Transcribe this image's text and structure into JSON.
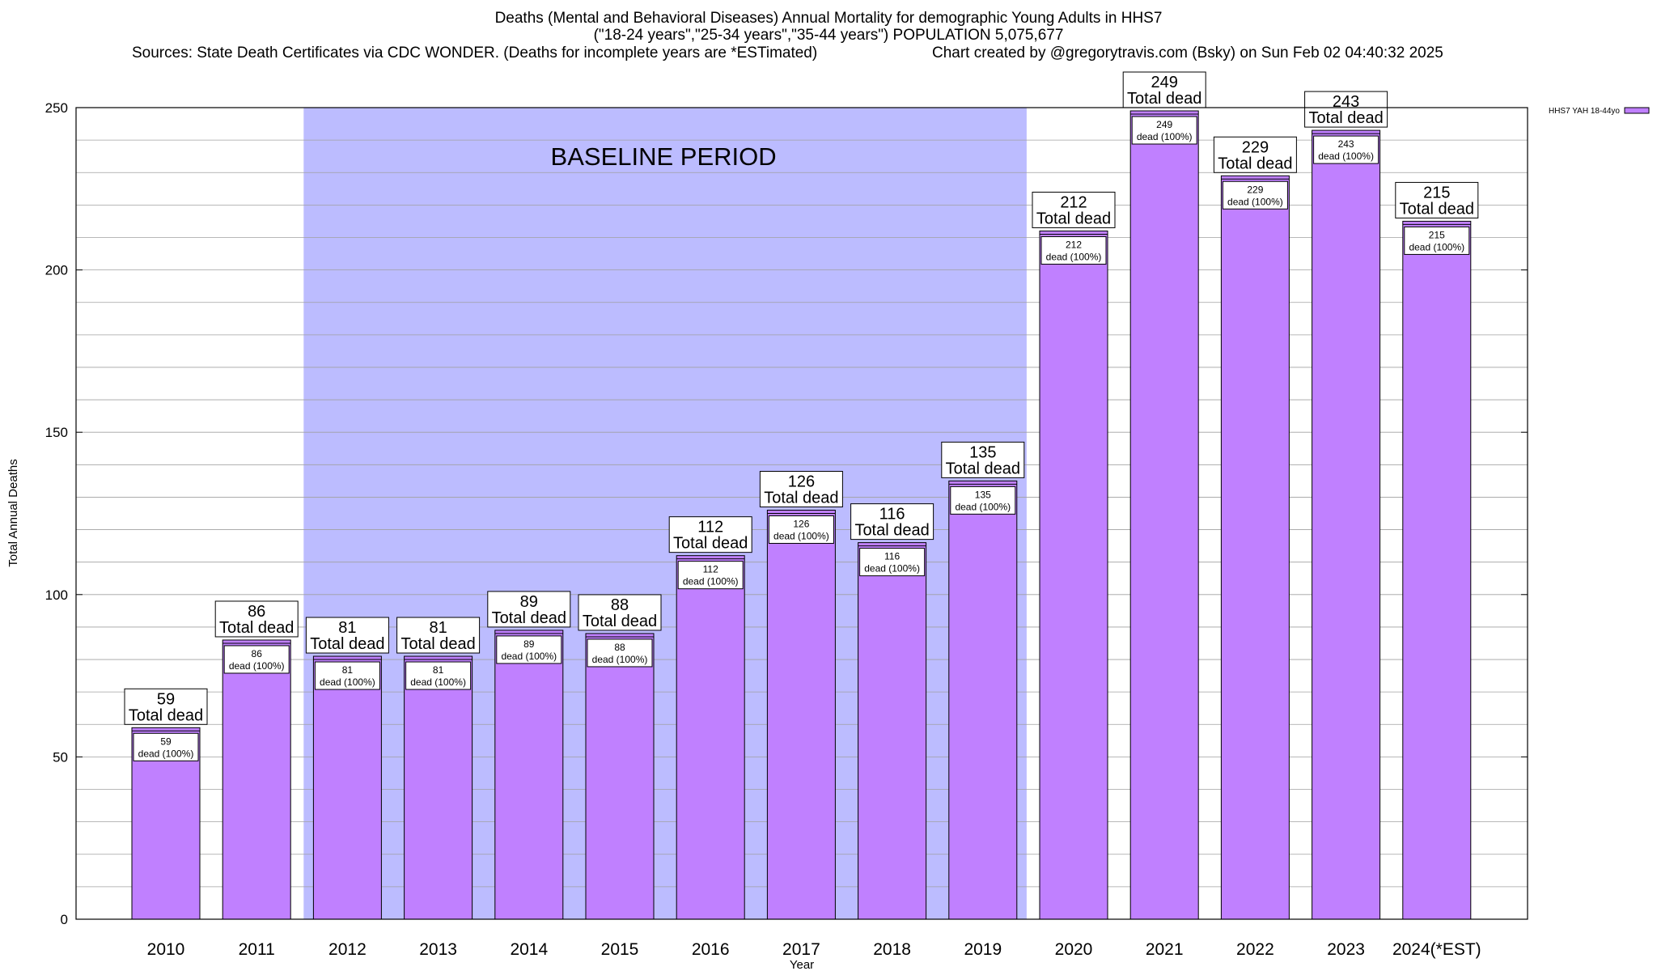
{
  "title": {
    "line1": "Deaths (Mental and Behavioral Diseases) Annual Mortality for demographic Young Adults in HHS7",
    "line2": "(\"18-24 years\",\"25-34 years\",\"35-44 years\") POPULATION 5,075,677",
    "sources": "Sources: State Death Certificates via CDC WONDER. (Deaths for incomplete years are *ESTimated)",
    "credit": "Chart created by @gregorytravis.com (Bsky) on Sun Feb 02 04:40:32 2025"
  },
  "colors": {
    "bar_fill": "#c080ff",
    "bar_stroke": "#000000",
    "baseline_band": "#bcbcff",
    "grid": "#a0a0a0"
  },
  "chart_data": {
    "type": "bar",
    "xlabel": "Year",
    "ylabel": "Total Annual Deaths",
    "ylim": [
      0,
      250
    ],
    "yticks": [
      0,
      50,
      100,
      150,
      200,
      250
    ],
    "grid": true,
    "legend": {
      "placement": "top-right",
      "entries": [
        "HHS7 YAH 18-44yo"
      ]
    },
    "annotation": {
      "text": "BASELINE PERIOD",
      "range_categories": [
        "2012",
        "2019"
      ]
    },
    "categories": [
      "2010",
      "2011",
      "2012",
      "2013",
      "2014",
      "2015",
      "2016",
      "2017",
      "2018",
      "2019",
      "2020",
      "2021",
      "2022",
      "2023",
      "2024(*EST)"
    ],
    "series": [
      {
        "name": "HHS7 YAH 18-44yo",
        "values": [
          59,
          86,
          81,
          81,
          89,
          88,
          112,
          126,
          116,
          135,
          212,
          249,
          229,
          243,
          215
        ]
      }
    ],
    "total_label_suffix": "Total dead",
    "inner_label_suffix": "dead (100%)"
  }
}
